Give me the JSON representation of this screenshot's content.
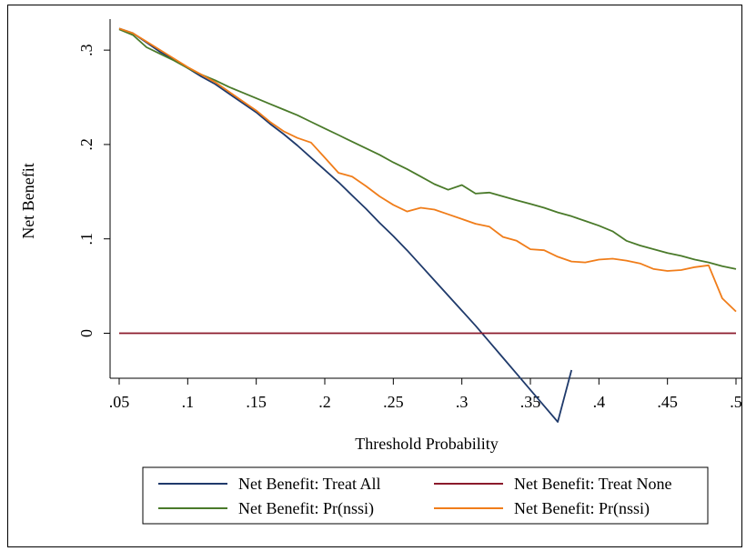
{
  "chart_data": {
    "type": "line",
    "title": "",
    "xlabel": "Threshold Probability",
    "ylabel": "Net Benefit",
    "xlim": [
      0.05,
      0.5
    ],
    "ylim": [
      -0.04,
      0.33
    ],
    "x_ticks": [
      0.05,
      0.1,
      0.15,
      0.2,
      0.25,
      0.3,
      0.35,
      0.4,
      0.45,
      0.5
    ],
    "x_tick_labels": [
      ".05",
      ".1",
      ".15",
      ".2",
      ".25",
      ".3",
      ".35",
      ".4",
      ".45",
      ".5"
    ],
    "y_ticks": [
      0,
      0.1,
      0.2,
      0.3
    ],
    "y_tick_labels": [
      "0",
      ".1",
      ".2",
      ".3"
    ],
    "grid": false,
    "legend_position": "bottom",
    "legend_columns": 2,
    "series": [
      {
        "name": "Net Benefit: Treat All",
        "color": "#1f3a6b",
        "x": [
          0.05,
          0.06,
          0.07,
          0.08,
          0.09,
          0.1,
          0.11,
          0.12,
          0.13,
          0.14,
          0.15,
          0.16,
          0.17,
          0.18,
          0.19,
          0.2,
          0.21,
          0.22,
          0.23,
          0.24,
          0.25,
          0.26,
          0.27,
          0.28,
          0.29,
          0.3,
          0.31,
          0.32,
          0.33,
          0.34,
          0.35,
          0.36,
          0.37,
          0.38
        ],
        "y": [
          0.323,
          0.318,
          0.308,
          0.298,
          0.29,
          0.281,
          0.272,
          0.264,
          0.254,
          0.244,
          0.234,
          0.222,
          0.211,
          0.199,
          0.186,
          0.173,
          0.16,
          0.146,
          0.132,
          0.117,
          0.103,
          0.088,
          0.072,
          0.056,
          0.04,
          0.024,
          0.008,
          -0.009,
          -0.026,
          -0.043,
          -0.06,
          -0.077,
          -0.094,
          -0.039
        ]
      },
      {
        "name": "Net Benefit: Treat None",
        "color": "#8b1a2b",
        "x": [
          0.05,
          0.5
        ],
        "y": [
          0,
          0
        ]
      },
      {
        "name": "Net Benefit: Pr(nssi)",
        "color": "#4a7a2a",
        "x": [
          0.05,
          0.06,
          0.07,
          0.08,
          0.09,
          0.1,
          0.11,
          0.12,
          0.13,
          0.14,
          0.15,
          0.16,
          0.17,
          0.18,
          0.19,
          0.2,
          0.21,
          0.22,
          0.23,
          0.24,
          0.25,
          0.26,
          0.27,
          0.28,
          0.29,
          0.3,
          0.31,
          0.32,
          0.33,
          0.34,
          0.35,
          0.36,
          0.37,
          0.38,
          0.39,
          0.4,
          0.41,
          0.42,
          0.43,
          0.44,
          0.45,
          0.46,
          0.47,
          0.48,
          0.49,
          0.5
        ],
        "y": [
          0.322,
          0.316,
          0.303,
          0.296,
          0.289,
          0.281,
          0.274,
          0.268,
          0.261,
          0.255,
          0.249,
          0.243,
          0.237,
          0.231,
          0.224,
          0.217,
          0.21,
          0.203,
          0.196,
          0.189,
          0.181,
          0.174,
          0.166,
          0.158,
          0.152,
          0.157,
          0.148,
          0.149,
          0.145,
          0.141,
          0.137,
          0.133,
          0.128,
          0.124,
          0.119,
          0.114,
          0.108,
          0.098,
          0.093,
          0.089,
          0.085,
          0.082,
          0.078,
          0.075,
          0.071,
          0.068
        ]
      },
      {
        "name": "Net Benefit: Pr(nssi)",
        "color": "#f07d1a",
        "x": [
          0.05,
          0.06,
          0.07,
          0.08,
          0.09,
          0.1,
          0.11,
          0.12,
          0.13,
          0.14,
          0.15,
          0.16,
          0.17,
          0.18,
          0.19,
          0.2,
          0.21,
          0.22,
          0.23,
          0.24,
          0.25,
          0.26,
          0.27,
          0.28,
          0.29,
          0.3,
          0.31,
          0.32,
          0.33,
          0.34,
          0.35,
          0.36,
          0.37,
          0.38,
          0.39,
          0.4,
          0.41,
          0.42,
          0.43,
          0.44,
          0.45,
          0.46,
          0.47,
          0.48,
          0.49,
          0.5
        ],
        "y": [
          0.323,
          0.318,
          0.309,
          0.3,
          0.291,
          0.282,
          0.274,
          0.266,
          0.256,
          0.246,
          0.236,
          0.224,
          0.214,
          0.207,
          0.202,
          0.186,
          0.17,
          0.166,
          0.156,
          0.145,
          0.136,
          0.129,
          0.133,
          0.131,
          0.126,
          0.121,
          0.116,
          0.113,
          0.102,
          0.098,
          0.089,
          0.088,
          0.081,
          0.076,
          0.075,
          0.078,
          0.079,
          0.077,
          0.074,
          0.068,
          0.066,
          0.067,
          0.07,
          0.072,
          0.037,
          0.023
        ]
      }
    ]
  }
}
